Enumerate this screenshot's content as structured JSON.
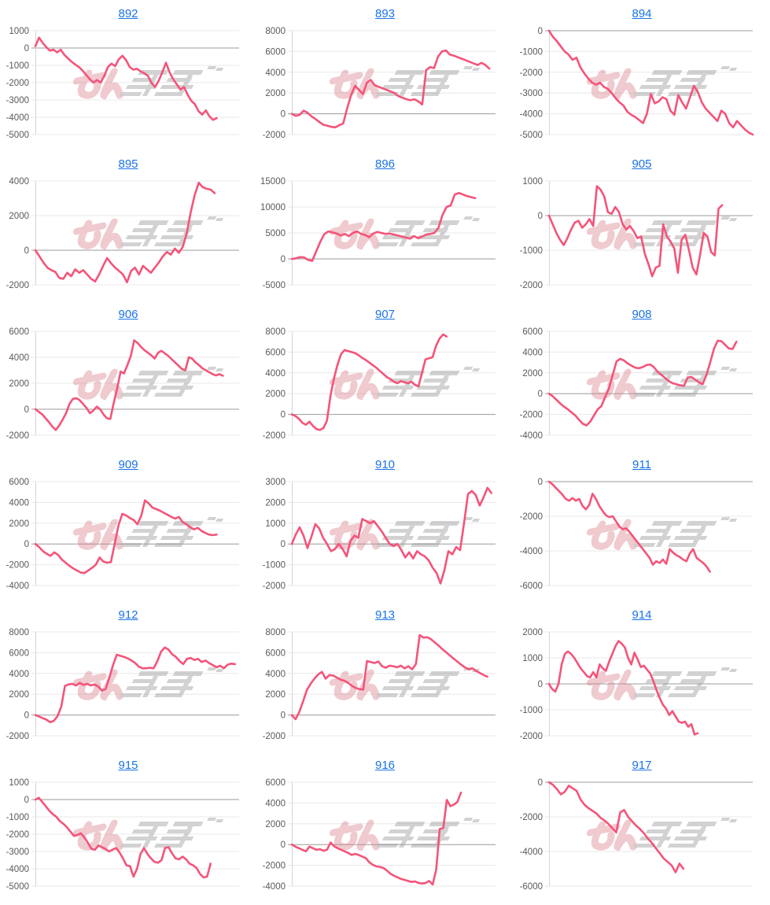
{
  "page": {
    "background": "#ffffff",
    "layout": "3x6 grid of line charts"
  },
  "colors": {
    "line": "#f4547a",
    "title_link": "#1a73e8",
    "tick_label": "#595959",
    "gridline": "#e8e8e8",
    "zero_line": "#9b9b9b",
    "axis_line": "#d6d6d6",
    "watermark_pink": "#d97d8a",
    "watermark_gray": "#979797"
  },
  "watermark": {
    "name": "minpachi-logo",
    "pink_text": "みん",
    "gray_text": "パチ"
  },
  "chart_data": [
    {
      "type": "line",
      "title": "892",
      "ylim": [
        -5000,
        1000
      ],
      "ystep": 1000,
      "grid": true,
      "span": 0.89,
      "values": [
        100,
        600,
        300,
        50,
        -150,
        -100,
        -250,
        -100,
        -400,
        -600,
        -800,
        -950,
        -1100,
        -1300,
        -1550,
        -1800,
        -2000,
        -1850,
        -2000,
        -1600,
        -1100,
        -900,
        -1050,
        -650,
        -450,
        -700,
        -1100,
        -1250,
        -1200,
        -1350,
        -1450,
        -1600,
        -2000,
        -2250,
        -1900,
        -1400,
        -850,
        -1400,
        -1800,
        -2100,
        -2400,
        -2250,
        -2700,
        -3050,
        -3250,
        -3650,
        -3850,
        -3600,
        -3950,
        -4150,
        -4050
      ]
    },
    {
      "type": "line",
      "title": "893",
      "ylim": [
        -2000,
        8000
      ],
      "ystep": 2000,
      "grid": true,
      "span": 0.97,
      "values": [
        0,
        -200,
        -100,
        300,
        100,
        -250,
        -500,
        -800,
        -1050,
        -1150,
        -1250,
        -1300,
        -1100,
        -950,
        500,
        1800,
        2700,
        2300,
        1900,
        3000,
        3250,
        2750,
        2600,
        2450,
        2300,
        2150,
        2000,
        1700,
        1550,
        1400,
        1300,
        1400,
        1200,
        900,
        4200,
        4500,
        4400,
        5500,
        6000,
        6100,
        5700,
        5600,
        5450,
        5300,
        5150,
        5000,
        4850,
        4700,
        4900,
        4700,
        4350
      ]
    },
    {
      "type": "line",
      "title": "894",
      "ylim": [
        -5000,
        0
      ],
      "ystep": 1000,
      "grid": true,
      "span": 1.0,
      "values": [
        0,
        -300,
        -500,
        -750,
        -1000,
        -1150,
        -1400,
        -1300,
        -1750,
        -2050,
        -2300,
        -2500,
        -2600,
        -2500,
        -2700,
        -2800,
        -3000,
        -3250,
        -3450,
        -3600,
        -3900,
        -4050,
        -4150,
        -4300,
        -4450,
        -4000,
        -3050,
        -3500,
        -3400,
        -3200,
        -3300,
        -3850,
        -4050,
        -3100,
        -3450,
        -3750,
        -3200,
        -2650,
        -2950,
        -3450,
        -3750,
        -3950,
        -4150,
        -4350,
        -3850,
        -4000,
        -4450,
        -4650,
        -4350,
        -4550,
        -4750,
        -4900,
        -5000
      ]
    },
    {
      "type": "line",
      "title": "895",
      "ylim": [
        -2000,
        4000
      ],
      "ystep": 2000,
      "grid": true,
      "span": 0.88,
      "values": [
        0,
        -350,
        -700,
        -1000,
        -1150,
        -1250,
        -1600,
        -1650,
        -1300,
        -1500,
        -1100,
        -1300,
        -1150,
        -1400,
        -1650,
        -1800,
        -1400,
        -900,
        -450,
        -750,
        -1000,
        -1200,
        -1400,
        -1850,
        -1200,
        -1000,
        -1400,
        -900,
        -1100,
        -1300,
        -1000,
        -700,
        -350,
        -100,
        -250,
        100,
        -150,
        200,
        1000,
        2200,
        3200,
        3900,
        3650,
        3550,
        3500,
        3300
      ]
    },
    {
      "type": "line",
      "title": "896",
      "ylim": [
        -5000,
        15000
      ],
      "ystep": 5000,
      "grid": true,
      "span": 0.9,
      "values": [
        0,
        100,
        350,
        300,
        -200,
        -400,
        1500,
        3300,
        4800,
        5300,
        5100,
        4900,
        4500,
        4800,
        4400,
        5000,
        5300,
        4800,
        4600,
        4200,
        4900,
        5200,
        5000,
        4800,
        4900,
        4700,
        4500,
        4300,
        4100,
        3900,
        4400,
        4000,
        4300,
        4700,
        4800,
        5000,
        6000,
        8500,
        10000,
        10300,
        12400,
        12700,
        12400,
        12100,
        11900,
        11700
      ]
    },
    {
      "type": "line",
      "title": "905",
      "ylim": [
        -2000,
        1000
      ],
      "ystep": 1000,
      "grid": true,
      "span": 0.85,
      "values": [
        0,
        -250,
        -500,
        -700,
        -850,
        -650,
        -400,
        -200,
        -150,
        -350,
        -250,
        -100,
        -300,
        850,
        750,
        550,
        100,
        50,
        250,
        100,
        -250,
        -400,
        -300,
        -450,
        -650,
        -600,
        -1100,
        -1400,
        -1750,
        -1500,
        -1450,
        -250,
        -600,
        -750,
        -950,
        -1650,
        -700,
        -550,
        -1000,
        -1500,
        -1700,
        -1150,
        -500,
        -600,
        -1050,
        -1150,
        200,
        300
      ]
    },
    {
      "type": "line",
      "title": "906",
      "ylim": [
        -2000,
        6000
      ],
      "ystep": 2000,
      "grid": true,
      "span": 0.92,
      "values": [
        0,
        -200,
        -400,
        -700,
        -1000,
        -1350,
        -1600,
        -1250,
        -800,
        -300,
        400,
        800,
        850,
        700,
        400,
        100,
        -300,
        -100,
        200,
        0,
        -400,
        -700,
        -750,
        500,
        1600,
        2900,
        2750,
        3400,
        4100,
        5300,
        5100,
        4800,
        4550,
        4350,
        4150,
        3900,
        4350,
        4500,
        4300,
        4100,
        3850,
        3600,
        3350,
        3100,
        3000,
        4000,
        3900,
        3600,
        3400,
        3150,
        3000,
        2850,
        2700,
        2600,
        2700,
        2580
      ]
    },
    {
      "type": "line",
      "title": "907",
      "ylim": [
        -2000,
        8000
      ],
      "ystep": 2000,
      "grid": true,
      "span": 0.76,
      "values": [
        0,
        -150,
        -400,
        -800,
        -1000,
        -700,
        -1100,
        -1400,
        -1500,
        -1300,
        -600,
        1800,
        3500,
        4800,
        5800,
        6200,
        6100,
        6000,
        5900,
        5700,
        5450,
        5250,
        5000,
        4750,
        4500,
        4200,
        3900,
        3600,
        3400,
        3150,
        3000,
        3200,
        3100,
        3000,
        3150,
        2850,
        2700,
        4000,
        5300,
        5400,
        5500,
        6600,
        7300,
        7700,
        7500
      ]
    },
    {
      "type": "line",
      "title": "908",
      "ylim": [
        -4000,
        6000
      ],
      "ystep": 2000,
      "grid": true,
      "span": 0.92,
      "values": [
        0,
        -250,
        -600,
        -950,
        -1250,
        -1500,
        -1800,
        -2100,
        -2500,
        -2900,
        -3050,
        -2700,
        -2100,
        -1500,
        -1200,
        -300,
        500,
        1800,
        3100,
        3350,
        3200,
        2900,
        2700,
        2500,
        2450,
        2550,
        2750,
        2800,
        2550,
        2100,
        1800,
        1500,
        1200,
        1000,
        900,
        800,
        750,
        1550,
        1600,
        1350,
        1100,
        900,
        1800,
        3000,
        4300,
        5100,
        5050,
        4700,
        4350,
        4300,
        5000
      ]
    },
    {
      "type": "line",
      "title": "909",
      "ylim": [
        -4000,
        6000
      ],
      "ystep": 2000,
      "grid": true,
      "span": 0.89,
      "values": [
        0,
        -300,
        -700,
        -950,
        -1150,
        -800,
        -1050,
        -1500,
        -1800,
        -2100,
        -2350,
        -2550,
        -2750,
        -2800,
        -2550,
        -2300,
        -2000,
        -1300,
        -1700,
        -1800,
        -1750,
        0,
        1800,
        2900,
        2750,
        2500,
        2300,
        1900,
        2700,
        4200,
        3900,
        3500,
        3350,
        3200,
        3000,
        2800,
        2600,
        2450,
        2600,
        2100,
        1900,
        1600,
        1400,
        1550,
        1250,
        1050,
        900,
        850,
        900
      ]
    },
    {
      "type": "line",
      "title": "910",
      "ylim": [
        -2000,
        3000
      ],
      "ystep": 1000,
      "grid": true,
      "span": 0.98,
      "values": [
        0,
        450,
        800,
        400,
        -200,
        350,
        950,
        750,
        300,
        0,
        -350,
        -250,
        0,
        -250,
        -600,
        150,
        400,
        300,
        1200,
        1100,
        1000,
        1100,
        850,
        600,
        300,
        0,
        -100,
        0,
        -300,
        -650,
        -400,
        -700,
        -350,
        -500,
        -600,
        -800,
        -1150,
        -1400,
        -1900,
        -1250,
        -350,
        -500,
        -150,
        -300,
        1000,
        2400,
        2550,
        2350,
        1850,
        2250,
        2700,
        2450
      ]
    },
    {
      "type": "line",
      "title": "911",
      "ylim": [
        -6000,
        0
      ],
      "ystep": 2000,
      "grid": true,
      "span": 0.79,
      "values": [
        0,
        -150,
        -350,
        -550,
        -750,
        -1000,
        -1100,
        -950,
        -1100,
        -1000,
        -1400,
        -1600,
        -1350,
        -700,
        -1000,
        -1400,
        -1700,
        -1950,
        -2050,
        -2000,
        -2300,
        -2600,
        -2750,
        -2700,
        -2900,
        -3150,
        -3400,
        -3650,
        -3900,
        -4150,
        -4400,
        -4800,
        -4600,
        -4700,
        -4500,
        -4750,
        -3900,
        -4100,
        -4250,
        -4350,
        -4500,
        -4600,
        -4150,
        -3900,
        -4400,
        -4550,
        -4700,
        -4900,
        -5200
      ]
    },
    {
      "type": "line",
      "title": "912",
      "ylim": [
        -2000,
        8000
      ],
      "ystep": 2000,
      "grid": true,
      "span": 0.98,
      "values": [
        0,
        -150,
        -300,
        -450,
        -700,
        -550,
        -100,
        800,
        2800,
        2950,
        3000,
        2850,
        3100,
        2900,
        3000,
        2850,
        2950,
        2750,
        2350,
        2500,
        3600,
        4800,
        5800,
        5700,
        5600,
        5450,
        5250,
        5000,
        4650,
        4500,
        4500,
        4550,
        4500,
        5200,
        6100,
        6500,
        6300,
        5850,
        5600,
        5200,
        4900,
        5400,
        5500,
        5300,
        5400,
        5100,
        5250,
        5000,
        4800,
        4600,
        4750,
        4500,
        4850,
        4950,
        4900
      ]
    },
    {
      "type": "line",
      "title": "913",
      "ylim": [
        -2000,
        8000
      ],
      "ystep": 2000,
      "grid": true,
      "span": 0.96,
      "values": [
        0,
        -400,
        300,
        1300,
        2400,
        3000,
        3500,
        3900,
        4150,
        3500,
        3850,
        3800,
        3600,
        3400,
        3300,
        3100,
        2800,
        2600,
        2500,
        2450,
        5200,
        5100,
        5000,
        5150,
        4700,
        4550,
        4750,
        4700,
        4600,
        4750,
        4500,
        4700,
        4400,
        4900,
        7700,
        7450,
        7500,
        7300,
        7000,
        6700,
        6350,
        6050,
        5750,
        5450,
        5150,
        4850,
        4600,
        4400,
        4500,
        4250,
        4050,
        3850,
        3700
      ]
    },
    {
      "type": "line",
      "title": "914",
      "ylim": [
        -2000,
        2000
      ],
      "ystep": 1000,
      "grid": true,
      "span": 0.73,
      "values": [
        0,
        -200,
        -300,
        0,
        750,
        1150,
        1250,
        1150,
        1000,
        800,
        600,
        450,
        300,
        250,
        450,
        250,
        750,
        600,
        500,
        850,
        1150,
        1450,
        1650,
        1550,
        1400,
        1000,
        750,
        1200,
        950,
        650,
        700,
        550,
        400,
        100,
        -250,
        -550,
        -800,
        -950,
        -1200,
        -1050,
        -1250,
        -1450,
        -1500,
        -1450,
        -1650,
        -1550,
        -1950,
        -1900
      ]
    },
    {
      "type": "line",
      "title": "915",
      "ylim": [
        -5000,
        1000
      ],
      "ystep": 1000,
      "grid": true,
      "span": 0.86,
      "values": [
        0,
        100,
        -150,
        -400,
        -650,
        -850,
        -1000,
        -1250,
        -1400,
        -1600,
        -1850,
        -2100,
        -2050,
        -1950,
        -2200,
        -2500,
        -2850,
        -2900,
        -2650,
        -2750,
        -2850,
        -3000,
        -2900,
        -2800,
        -3050,
        -3400,
        -3800,
        -3850,
        -4450,
        -4000,
        -3150,
        -2800,
        -3150,
        -3400,
        -3600,
        -3650,
        -3500,
        -2800,
        -2750,
        -3100,
        -3400,
        -3450,
        -3300,
        -3450,
        -3700,
        -3800,
        -3950,
        -4300,
        -4500,
        -4450,
        -3700
      ]
    },
    {
      "type": "line",
      "title": "916",
      "ylim": [
        -4000,
        6000
      ],
      "ystep": 2000,
      "grid": true,
      "span": 0.83,
      "values": [
        0,
        -200,
        -350,
        -500,
        -650,
        -200,
        -350,
        -500,
        -450,
        -600,
        -500,
        200,
        -150,
        -350,
        -500,
        -650,
        -800,
        -1000,
        -900,
        -1000,
        -1150,
        -1300,
        -1700,
        -1950,
        -2100,
        -2150,
        -2250,
        -2500,
        -2800,
        -3000,
        -3150,
        -3300,
        -3400,
        -3500,
        -3600,
        -3550,
        -3700,
        -3750,
        -3700,
        -3500,
        -3850,
        -2400,
        1500,
        1600,
        4300,
        3700,
        3850,
        4100,
        5000
      ]
    },
    {
      "type": "line",
      "title": "917",
      "ylim": [
        -6000,
        0
      ],
      "ystep": 2000,
      "grid": true,
      "span": 0.66,
      "values": [
        0,
        -150,
        -400,
        -700,
        -550,
        -200,
        -350,
        -500,
        -1000,
        -1300,
        -1500,
        -1650,
        -1800,
        -2050,
        -2200,
        -2400,
        -2650,
        -2900,
        -1750,
        -1600,
        -2000,
        -2250,
        -2500,
        -2700,
        -2950,
        -3250,
        -3500,
        -3800,
        -4100,
        -4400,
        -4600,
        -4800,
        -5200,
        -4700,
        -5000
      ]
    }
  ]
}
